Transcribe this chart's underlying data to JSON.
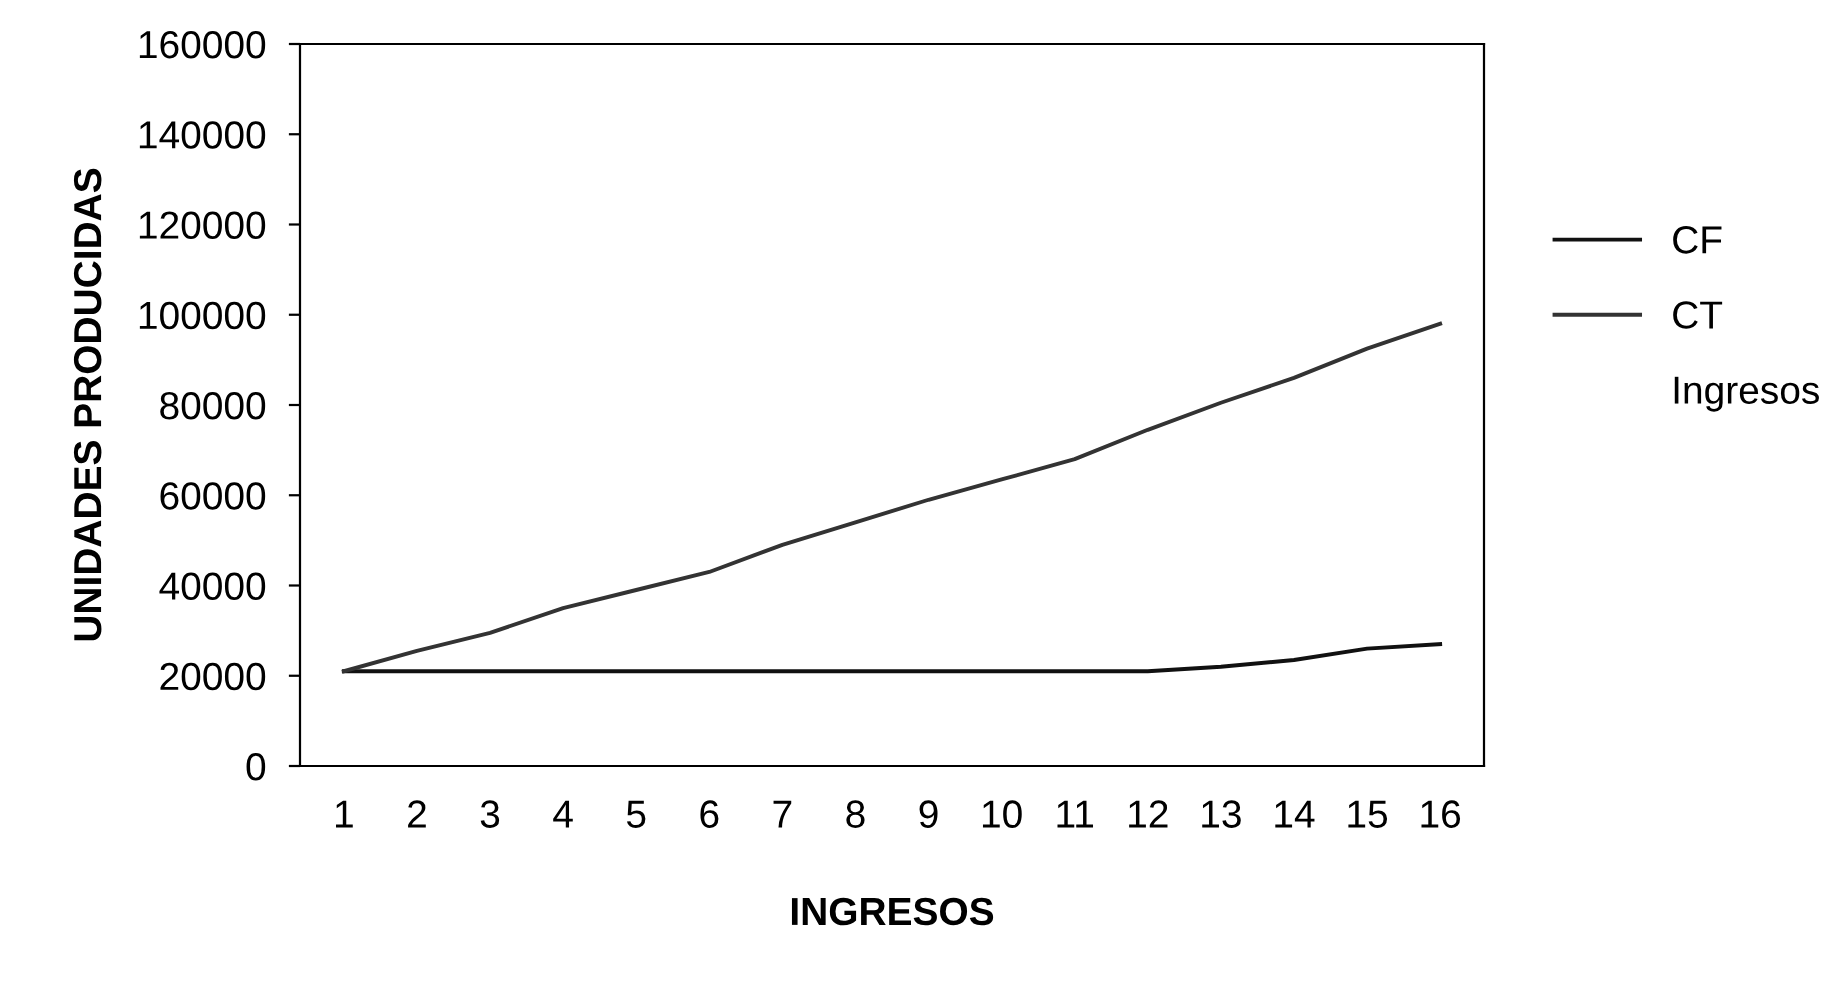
{
  "chart_data": {
    "type": "line",
    "xlabel": "INGRESOS",
    "ylabel": "UNIDADES PRODUCIDAS",
    "categories": [
      "1",
      "2",
      "3",
      "4",
      "5",
      "6",
      "7",
      "8",
      "9",
      "10",
      "11",
      "12",
      "13",
      "14",
      "15",
      "16"
    ],
    "series": [
      {
        "name": "CF",
        "color": "#111111",
        "values": [
          21000,
          21000,
          21000,
          21000,
          21000,
          21000,
          21000,
          21000,
          21000,
          21000,
          21000,
          21000,
          22000,
          23500,
          26000,
          27000
        ]
      },
      {
        "name": "CT",
        "color": "#333333",
        "values": [
          21000,
          25500,
          29500,
          35000,
          39000,
          43000,
          49000,
          54000,
          59000,
          63500,
          68000,
          74500,
          80500,
          86000,
          92500,
          98000
        ]
      },
      {
        "name": "Ingresos",
        "values": [
          null,
          null,
          null,
          null,
          null,
          null,
          null,
          null,
          null,
          null,
          null,
          null,
          null,
          null,
          null,
          null
        ]
      }
    ],
    "ylim": [
      0,
      160000
    ],
    "yticks": [
      0,
      20000,
      40000,
      60000,
      80000,
      100000,
      120000,
      140000,
      160000
    ],
    "grid": false,
    "legend": "right",
    "marker": "none",
    "line_style": "solid"
  }
}
